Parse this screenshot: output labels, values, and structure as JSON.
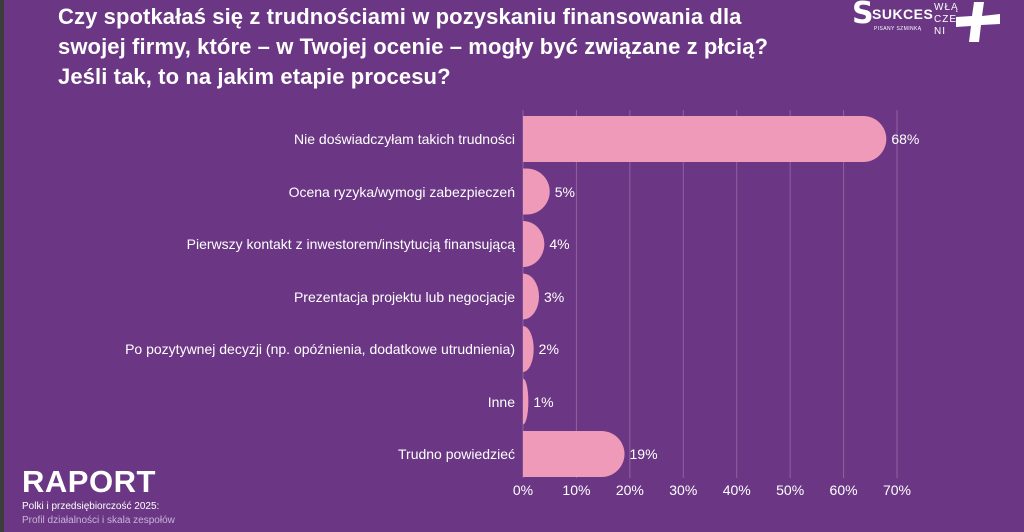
{
  "title": "Czy spotkałaś się z trudnościami w pozyskaniu finansowania dla swojej firmy, które – w Twojej ocenie – mogły być związane z płcią? Jeśli tak, to na jakim etapie procesu?",
  "logos": {
    "sukces_brand": "SUKCES",
    "sukces_tagline": "PISANY SZMINKĄ",
    "wla_line1": "WŁĄ",
    "wla_line2": "CZE",
    "wla_line3": "NI"
  },
  "footer": {
    "raport": "RAPORT",
    "subtitle": "Polki i przedsiębiorczość 2025:",
    "subtitle2": "Profil działalności i skala zespołów"
  },
  "colors": {
    "background": "#6b3784",
    "bar": "#f09ab9",
    "grid": "#8d639f"
  },
  "chart_data": {
    "type": "bar",
    "orientation": "horizontal",
    "categories": [
      "Nie doświadczyłam takich trudności",
      "Ocena ryzyka/wymogi zabezpieczeń",
      "Pierwszy kontakt z inwestorem/instytucją finansującą",
      "Prezentacja projektu lub negocjacje",
      "Po pozytywnej decyzji (np. opóźnienia, dodatkowe utrudnienia)",
      "Inne",
      "Trudno powiedzieć"
    ],
    "values": [
      68,
      5,
      4,
      3,
      2,
      1,
      19
    ],
    "value_labels": [
      "68%",
      "5%",
      "4%",
      "3%",
      "2%",
      "1%",
      "19%"
    ],
    "xlim": [
      0,
      70
    ],
    "xticks": [
      "0%",
      "10%",
      "20%",
      "30%",
      "40%",
      "50%",
      "60%",
      "70%"
    ],
    "grid": true
  }
}
